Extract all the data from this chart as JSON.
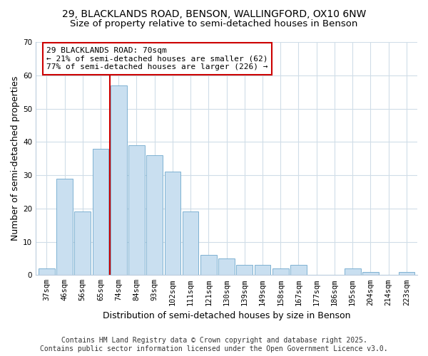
{
  "title_line1": "29, BLACKLANDS ROAD, BENSON, WALLINGFORD, OX10 6NW",
  "title_line2": "Size of property relative to semi-detached houses in Benson",
  "xlabel": "Distribution of semi-detached houses by size in Benson",
  "ylabel": "Number of semi-detached properties",
  "categories": [
    "37sqm",
    "46sqm",
    "56sqm",
    "65sqm",
    "74sqm",
    "84sqm",
    "93sqm",
    "102sqm",
    "111sqm",
    "121sqm",
    "130sqm",
    "139sqm",
    "149sqm",
    "158sqm",
    "167sqm",
    "177sqm",
    "186sqm",
    "195sqm",
    "204sqm",
    "214sqm",
    "223sqm"
  ],
  "values": [
    2,
    29,
    19,
    38,
    57,
    39,
    36,
    31,
    19,
    6,
    5,
    3,
    3,
    2,
    3,
    0,
    0,
    2,
    1,
    0,
    1
  ],
  "bar_color": "#c9dff0",
  "bar_edge_color": "#6fa8cc",
  "highlight_bar_index": 3,
  "highlight_line_color": "#cc0000",
  "annotation_line1": "29 BLACKLANDS ROAD: 70sqm",
  "annotation_line2": "← 21% of semi-detached houses are smaller (62)",
  "annotation_line3": "77% of semi-detached houses are larger (226) →",
  "annotation_box_color": "#cc0000",
  "ylim": [
    0,
    70
  ],
  "yticks": [
    0,
    10,
    20,
    30,
    40,
    50,
    60,
    70
  ],
  "footer_line1": "Contains HM Land Registry data © Crown copyright and database right 2025.",
  "footer_line2": "Contains public sector information licensed under the Open Government Licence v3.0.",
  "bg_color": "#ffffff",
  "plot_bg_color": "#ffffff",
  "grid_color": "#d0dde8",
  "title_fontsize": 10,
  "subtitle_fontsize": 9.5,
  "axis_label_fontsize": 9,
  "tick_fontsize": 7.5,
  "annotation_fontsize": 8,
  "footer_fontsize": 7
}
